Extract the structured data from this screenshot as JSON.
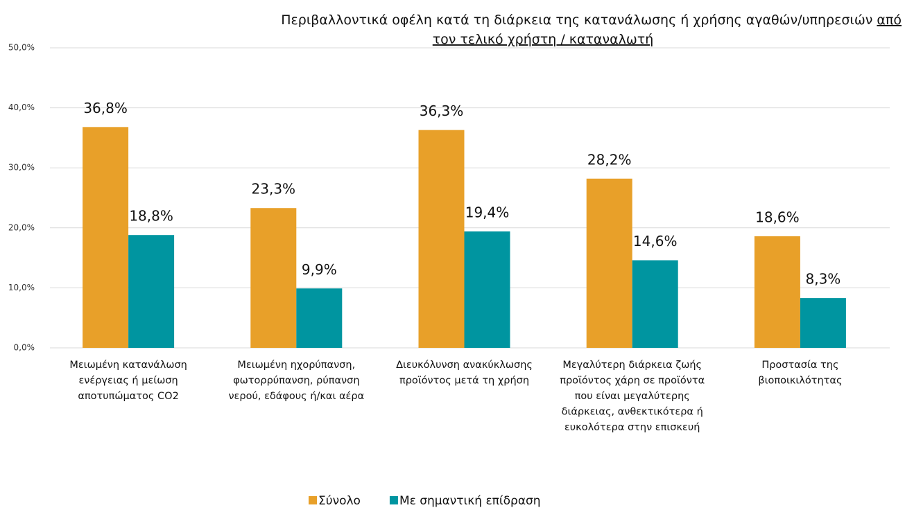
{
  "chart_data": {
    "type": "bar",
    "title": [
      [
        {
          "text": "Περιβαλλοντικά οφέλη κατά τη διάρκεια της κατανάλωσης ή χρήσης αγαθών/υπηρεσιών ",
          "underline": false
        },
        {
          "text": "από",
          "underline": true
        }
      ],
      [
        {
          "text": "τον τελικό χρήστη / καταναλωτή",
          "underline": true
        }
      ]
    ],
    "categories": [
      [
        "Μειωμένη κατανάλωση",
        "ενέργειας ή μείωση",
        "αποτυπώματος CO2"
      ],
      [
        "Μειωμένη ηχορύπανση,",
        "φωτορρύπανση, ρύπανση",
        "νερού, εδάφους ή/και αέρα"
      ],
      [
        "Διευκόλυνση ανακύκλωσης",
        "προϊόντος μετά τη χρήση"
      ],
      [
        "Μεγαλύτερη διάρκεια ζωής",
        "προϊόντος χάρη σε προϊόντα",
        "που είναι μεγαλύτερης",
        "διάρκειας, ανθεκτικότερα ή",
        "ευκολότερα στην επισκευή"
      ],
      [
        "Προστασία της",
        "βιοποικιλότητας"
      ]
    ],
    "series": [
      {
        "name": "Σύνολο",
        "color": "#E8A029",
        "values": [
          36.8,
          23.3,
          36.3,
          28.2,
          18.6
        ],
        "value_labels": [
          "36,8%",
          "23,3%",
          "36,3%",
          "28,2%",
          "18,6%"
        ]
      },
      {
        "name": "Με σημαντική επίδραση",
        "color": "#0095A0",
        "values": [
          18.8,
          9.9,
          19.4,
          14.6,
          8.3
        ],
        "value_labels": [
          "18,8%",
          "9,9%",
          "19,4%",
          "14,6%",
          "8,3%"
        ]
      }
    ],
    "ylim": [
      0,
      50
    ],
    "yticks": [
      {
        "value": 0,
        "label": "0,0%"
      },
      {
        "value": 10,
        "label": "10,0%"
      },
      {
        "value": 20,
        "label": "20,0%"
      },
      {
        "value": 30,
        "label": "30,0%"
      },
      {
        "value": 40,
        "label": "40,0%"
      },
      {
        "value": 50,
        "label": "50,0%"
      }
    ],
    "grid": true,
    "legend": "bottom"
  }
}
